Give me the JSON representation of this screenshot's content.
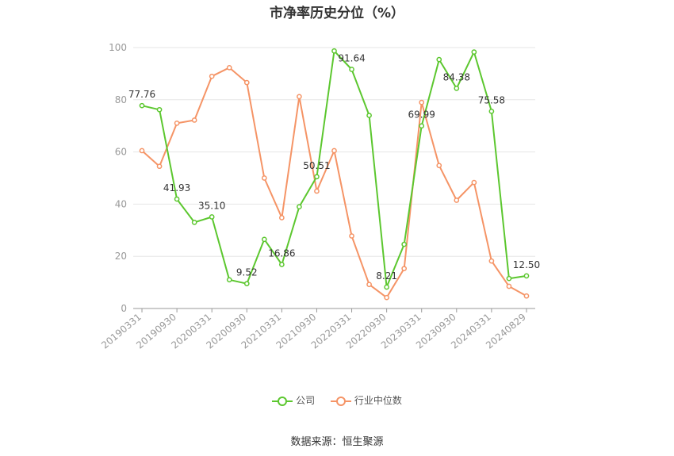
{
  "chart_data": {
    "type": "line",
    "title": "市净率历史分位（%）",
    "xlabel": "",
    "ylabel": "",
    "ylim": [
      0,
      100
    ],
    "yticks": [
      0,
      20,
      40,
      60,
      80,
      100
    ],
    "x": [
      "20190331",
      "20190630",
      "20190930",
      "20191231",
      "20200331",
      "20200630",
      "20200930",
      "20201231",
      "20210331",
      "20210630",
      "20210930",
      "20211231",
      "20220331",
      "20220630",
      "20220930",
      "20221231",
      "20230331",
      "20230630",
      "20230930",
      "20231231",
      "20240331",
      "20240630",
      "20240829"
    ],
    "xtick_labels": [
      "20190331",
      "20190930",
      "20200331",
      "20200930",
      "20210331",
      "20210930",
      "20220331",
      "20220930",
      "20230331",
      "20230930",
      "20240331",
      "20240829"
    ],
    "series": [
      {
        "name": "公司",
        "color": "#5cc72f",
        "values": [
          77.76,
          76.2,
          41.93,
          33.0,
          35.1,
          11.0,
          9.52,
          26.5,
          16.86,
          39.0,
          50.51,
          98.7,
          91.64,
          74.0,
          8.21,
          24.6,
          69.99,
          95.4,
          84.38,
          98.3,
          75.58,
          11.5,
          12.5
        ],
        "labels": {
          "0": "77.76",
          "2": "41.93",
          "4": "35.10",
          "6": "9.52",
          "8": "16.86",
          "10": "50.51",
          "12": "91.64",
          "14": "8.21",
          "16": "69.99",
          "18": "84.38",
          "20": "75.58",
          "22": "12.50"
        }
      },
      {
        "name": "行业中位数",
        "color": "#f59466",
        "values": [
          60.5,
          54.5,
          71.0,
          72.2,
          89.0,
          92.3,
          86.6,
          50.0,
          34.8,
          81.2,
          45.0,
          60.5,
          27.8,
          9.2,
          4.2,
          15.3,
          79.0,
          54.8,
          41.5,
          48.3,
          18.2,
          8.5,
          4.8
        ]
      }
    ],
    "grid": true,
    "legend": "bottom"
  },
  "source_text": "数据来源：恒生聚源"
}
